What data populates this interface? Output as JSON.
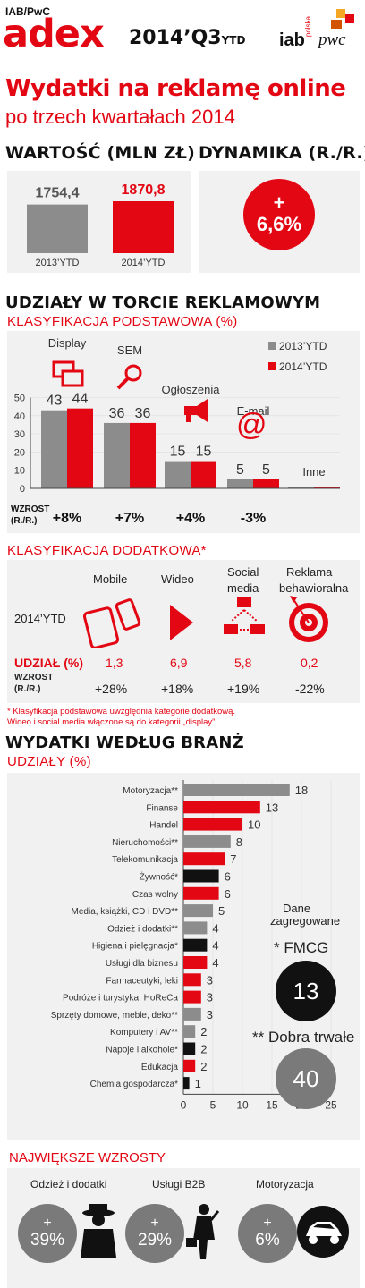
{
  "header": {
    "brand_small": "IAB/PwC",
    "brand": "adex",
    "period": "2014’Q3",
    "period_suffix": "YTD",
    "logo_iab": "iab",
    "logo_iab_small": "polska",
    "logo_pwc": "pwc",
    "title_line1": "Wydatki na reklamę online",
    "title_line2": "po trzech kwartałach 2014"
  },
  "value_section": {
    "heading_value": "WARTOŚĆ (MLN ZŁ)",
    "heading_growth": "DYNAMIKA (R./R.)",
    "growth_sign": "+",
    "growth_value": "6,6%"
  },
  "chart_data": [
    {
      "id": "value",
      "type": "bar",
      "title": "WARTOŚĆ (MLN ZŁ)",
      "categories": [
        "2013’YTD",
        "2014’YTD"
      ],
      "values": [
        1754.4,
        1870.8
      ],
      "labels": [
        "1754,4",
        "1870,8"
      ],
      "colors": [
        "#8c8c8c",
        "#e30613"
      ]
    },
    {
      "id": "shares",
      "type": "bar",
      "title": "UDZIAŁY W TORCIE REKLAMOWYM",
      "subtitle": "KLASYFIKACJA PODSTAWOWA (%)",
      "categories": [
        "Display",
        "SEM",
        "Ogłoszenia",
        "E-mail",
        "Inne"
      ],
      "series": [
        {
          "name": "2013’YTD",
          "color": "#8c8c8c",
          "values": [
            43,
            36,
            15,
            5,
            0.5
          ]
        },
        {
          "name": "2014’YTD",
          "color": "#e30613",
          "values": [
            44,
            36,
            15,
            5,
            0.5
          ]
        }
      ],
      "value_labels": [
        [
          "43",
          "44"
        ],
        [
          "36",
          "36"
        ],
        [
          "15",
          "15"
        ],
        [
          "5",
          "5"
        ],
        [
          "",
          ""
        ]
      ],
      "yticks": [
        "0",
        "10",
        "20",
        "30",
        "40",
        "50"
      ],
      "ylim": [
        0,
        55
      ],
      "growth_label": "WZROST",
      "growth_label2": "(R./R.)",
      "growth": [
        "+8%",
        "+7%",
        "+4%",
        "-3%",
        ""
      ],
      "legend_position": "top-right"
    },
    {
      "id": "industries",
      "type": "bar",
      "orientation": "horizontal",
      "title": "WYDATKI WEDŁUG BRANŻ",
      "subtitle": "UDZIAŁY (%)",
      "categories": [
        "Motoryzacja**",
        "Finanse",
        "Handel",
        "Nieruchomości**",
        "Telekomunikacja",
        "Żywność*",
        "Czas wolny",
        "Media, książki, CD i DVD**",
        "Odzież i dodatki**",
        "Higiena i pielęgnacja*",
        "Usługi dla biznesu",
        "Farmaceutyki, leki",
        "Podróże i turystyka, HoReCa",
        "Sprzęty domowe, meble, deko**",
        "Komputery i AV**",
        "Napoje i alkohole*",
        "Edukacja",
        "Chemia gospodarcza*"
      ],
      "values": [
        18,
        13,
        10,
        8,
        7,
        6,
        6,
        5,
        4,
        4,
        4,
        3,
        3,
        3,
        2,
        2,
        2,
        1
      ],
      "value_labels": [
        "18",
        "13",
        "10",
        "8",
        "7",
        "6",
        "6",
        "5",
        "4",
        "4",
        "4",
        "3",
        "3",
        "3",
        "2",
        "2",
        "2",
        "1"
      ],
      "colors": [
        "#8c8c8c",
        "#e30613",
        "#e30613",
        "#8c8c8c",
        "#e30613",
        "#111111",
        "#e30613",
        "#8c8c8c",
        "#8c8c8c",
        "#111111",
        "#e30613",
        "#e30613",
        "#e30613",
        "#8c8c8c",
        "#8c8c8c",
        "#111111",
        "#e30613",
        "#111111"
      ],
      "xticks": [
        "0",
        "5",
        "10",
        "15",
        "20",
        "25"
      ],
      "xlim": [
        0,
        25
      ]
    }
  ],
  "additional": {
    "heading": "KLASYFIKACJA DODATKOWA*",
    "row_year": "2014’YTD",
    "share_label": "UDZIAŁ (%)",
    "growth_label": "WZROST",
    "growth_label2": "(R./R.)",
    "columns": [
      {
        "label1": "Mobile",
        "label2": "",
        "share": "1,3",
        "growth": "+28%",
        "icon": "mobile-devices-icon"
      },
      {
        "label1": "Wideo",
        "label2": "",
        "share": "6,9",
        "growth": "+18%",
        "icon": "play-icon"
      },
      {
        "label1": "Social",
        "label2": "media",
        "share": "5,8",
        "growth": "+19%",
        "icon": "social-network-icon"
      },
      {
        "label1": "Reklama",
        "label2": "behawioralna",
        "share": "0,2",
        "growth": "-22%",
        "icon": "target-icon"
      }
    ],
    "footnote_line1": "* Klasyfikacja podstawowa uwzględnia kategorie dodatkową.",
    "footnote_line2": "Wideo i social media włączone są do kategorii „display”."
  },
  "aggregated": {
    "title_line1": "Dane",
    "title_line2": "zagregowane",
    "fmcg_label": "* FMCG",
    "fmcg_value": "13",
    "durables_label": "** Dobra trwałe",
    "durables_value": "40"
  },
  "top_growth": {
    "heading": "NAJWIĘKSZE WZROSTY",
    "items": [
      {
        "label": "Odzież i dodatki",
        "sign": "+",
        "value": "39%",
        "icon": "clothing-figure-icon"
      },
      {
        "label": "Usługi B2B",
        "sign": "+",
        "value": "29%",
        "icon": "businessman-icon"
      },
      {
        "label": "Motoryzacja",
        "sign": "+",
        "value": "6%",
        "icon": "car-icon"
      }
    ]
  },
  "icons": {
    "display": "windows-icon",
    "sem": "magnifier-icon",
    "classifieds": "megaphone-icon",
    "email": "at-sign-icon"
  },
  "colors": {
    "accent": "#e30613",
    "gray": "#8c8c8c",
    "dark": "#222222",
    "panel": "#f1f1f1"
  }
}
